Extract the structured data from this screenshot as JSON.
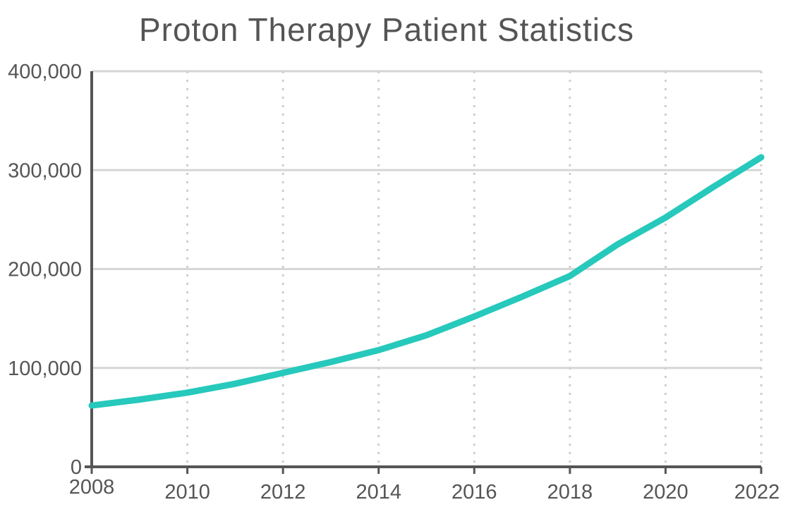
{
  "chart_data": {
    "type": "line",
    "title": "Proton Therapy Patient Statistics",
    "xlabel": "",
    "ylabel": "",
    "x": [
      2008,
      2009,
      2010,
      2011,
      2012,
      2013,
      2014,
      2015,
      2016,
      2017,
      2018,
      2019,
      2020,
      2021,
      2022
    ],
    "series": [
      {
        "values": [
          62000,
          68000,
          75000,
          84000,
          95000,
          106000,
          118000,
          133000,
          152000,
          172000,
          193000,
          225000,
          252000,
          283000,
          313000
        ],
        "color": "#26c9bb"
      }
    ],
    "xlim": [
      2008,
      2022
    ],
    "ylim": [
      0,
      400000
    ],
    "xticks": [
      "2008",
      "2010",
      "2012",
      "2014",
      "2016",
      "2018",
      "2020",
      "2022"
    ],
    "yticks": [
      "0",
      "100,000",
      "200,000",
      "300,000",
      "400,000"
    ],
    "grid": {
      "horizontal": "solid",
      "vertical": "dotted"
    },
    "legend": "none"
  }
}
